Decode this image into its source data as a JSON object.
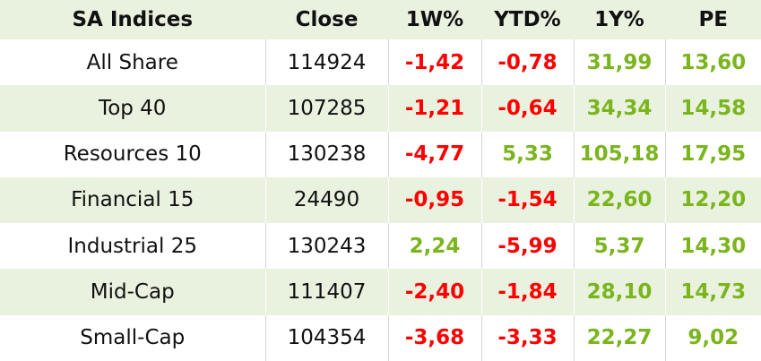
{
  "table": {
    "header": [
      "SA Indices",
      "Close",
      "1W%",
      "YTD%",
      "1Y%",
      "PE"
    ],
    "rows": [
      [
        "All Share",
        "114924",
        "-1,42",
        "-0,78",
        "31,99",
        "13,60"
      ],
      [
        "Top 40",
        "107285",
        "-1,21",
        "-0,64",
        "34,34",
        "14,58"
      ],
      [
        "Resources 10",
        "130238",
        "-4,77",
        "5,33",
        "105,18",
        "17,95"
      ],
      [
        "Financial 15",
        "24490",
        "-0,95",
        "-1,54",
        "22,60",
        "12,20"
      ],
      [
        "Industrial 25",
        "130243",
        "2,24",
        "-5,99",
        "5,37",
        "14,30"
      ],
      [
        "Mid-Cap",
        "111407",
        "-2,40",
        "-1,84",
        "28,10",
        "14,73"
      ],
      [
        "Small-Cap",
        "104354",
        "-3,68",
        "-3,33",
        "22,27",
        "9,02"
      ]
    ]
  }
}
